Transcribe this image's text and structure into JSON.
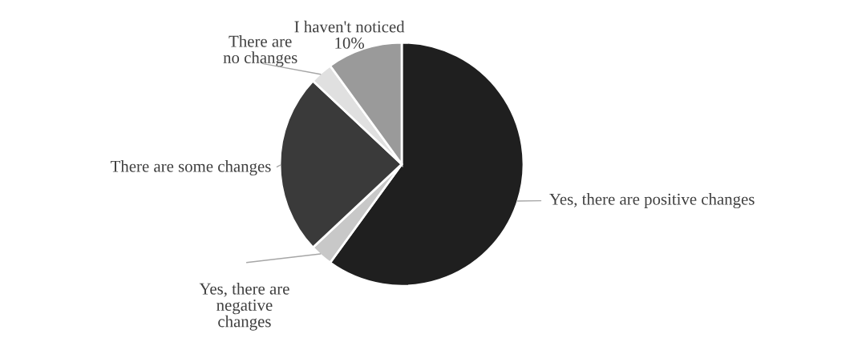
{
  "chart_data": {
    "type": "pie",
    "categories": [
      "Yes, there are positive changes",
      "Yes, there are\nnegative\nchanges",
      "There are some changes",
      "There are\nno changes",
      "I haven't noticed"
    ],
    "values": [
      60,
      3,
      24,
      3,
      10
    ],
    "colors": [
      "#1f1f1f",
      "#c8c8c8",
      "#3a3a3a",
      "#e0e0e0",
      "#9a9a9a"
    ],
    "value_labels": [
      null,
      null,
      null,
      null,
      "10%"
    ]
  }
}
